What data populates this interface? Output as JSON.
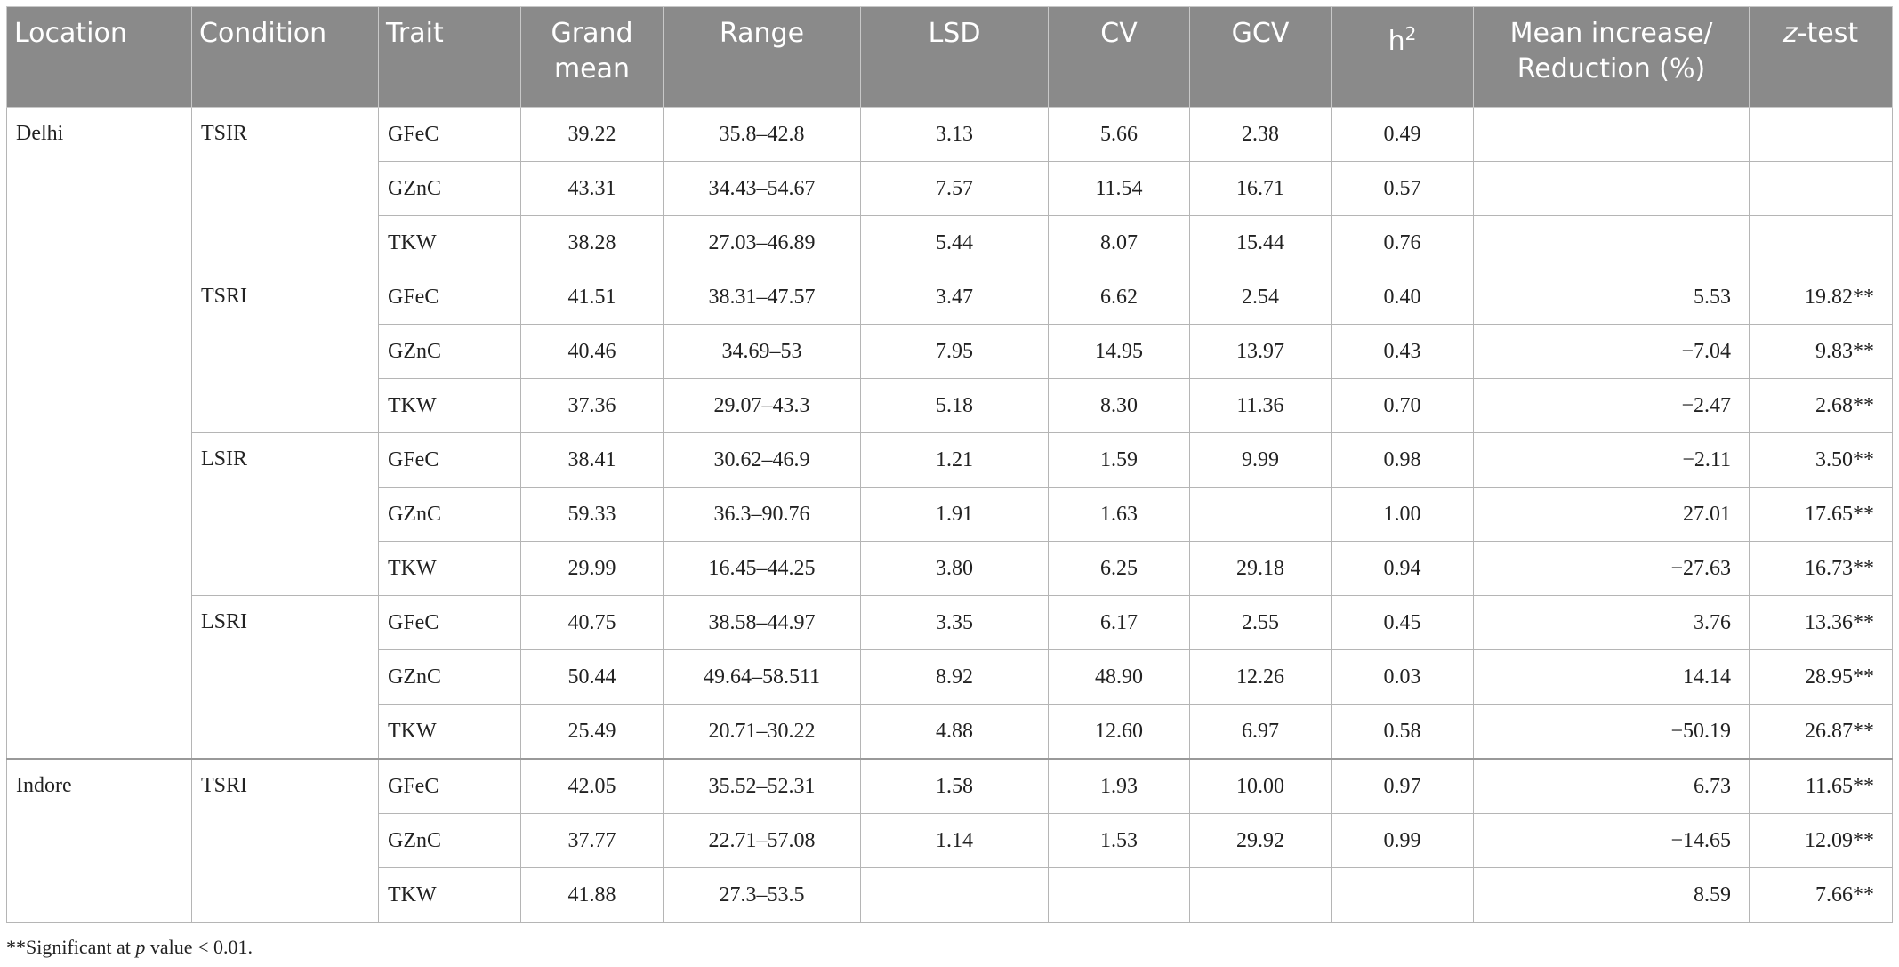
{
  "table": {
    "headers": [
      "Location",
      "Condition",
      "Trait",
      "Grand mean",
      "Range",
      "LSD",
      "CV",
      "GCV",
      {
        "base": "h",
        "sup": "2"
      },
      "Mean increase/ Reduction (%)",
      {
        "italic": "z",
        "rest": "-test"
      }
    ],
    "groups": [
      {
        "location": "Delhi",
        "conditions": [
          {
            "condition": "TSIR",
            "rows": [
              [
                "GFeC",
                "39.22",
                "35.8–42.8",
                "3.13",
                "5.66",
                "2.38",
                "0.49",
                null,
                null
              ],
              [
                "GZnC",
                "43.31",
                "34.43–54.67",
                "7.57",
                "11.54",
                "16.71",
                "0.57",
                null,
                null
              ],
              [
                "TKW",
                "38.28",
                "27.03–46.89",
                "5.44",
                "8.07",
                "15.44",
                "0.76",
                null,
                null
              ]
            ]
          },
          {
            "condition": "TSRI",
            "rows": [
              [
                "GFeC",
                "41.51",
                "38.31–47.57",
                "3.47",
                "6.62",
                "2.54",
                "0.40",
                "5.53",
                "19.82**"
              ],
              [
                "GZnC",
                "40.46",
                "34.69–53",
                "7.95",
                "14.95",
                "13.97",
                "0.43",
                "−7.04",
                "9.83**"
              ],
              [
                "TKW",
                "37.36",
                "29.07–43.3",
                "5.18",
                "8.30",
                "11.36",
                "0.70",
                "−2.47",
                "2.68**"
              ]
            ]
          },
          {
            "condition": "LSIR",
            "rows": [
              [
                "GFeC",
                "38.41",
                "30.62–46.9",
                "1.21",
                "1.59",
                "9.99",
                "0.98",
                "−2.11",
                "3.50**"
              ],
              [
                "GZnC",
                "59.33",
                "36.3–90.76",
                "1.91",
                "1.63",
                null,
                "1.00",
                "27.01",
                "17.65**"
              ],
              [
                "TKW",
                "29.99",
                "16.45–44.25",
                "3.80",
                "6.25",
                "29.18",
                "0.94",
                "−27.63",
                "16.73**"
              ]
            ]
          },
          {
            "condition": "LSRI",
            "rows": [
              [
                "GFeC",
                "40.75",
                "38.58–44.97",
                "3.35",
                "6.17",
                "2.55",
                "0.45",
                "3.76",
                "13.36**"
              ],
              [
                "GZnC",
                "50.44",
                "49.64–58.511",
                "8.92",
                "48.90",
                "12.26",
                "0.03",
                "14.14",
                "28.95**"
              ],
              [
                "TKW",
                "25.49",
                "20.71–30.22",
                "4.88",
                "12.60",
                "6.97",
                "0.58",
                "−50.19",
                "26.87**"
              ]
            ]
          }
        ]
      },
      {
        "location": "Indore",
        "conditions": [
          {
            "condition": "TSRI",
            "rows": [
              [
                "GFeC",
                "42.05",
                "35.52–52.31",
                "1.58",
                "1.93",
                "10.00",
                "0.97",
                "6.73",
                "11.65**"
              ],
              [
                "GZnC",
                "37.77",
                "22.71–57.08",
                "1.14",
                "1.53",
                "29.92",
                "0.99",
                "−14.65",
                "12.09**"
              ],
              [
                "TKW",
                "41.88",
                "27.3–53.5",
                null,
                null,
                null,
                null,
                "8.59",
                "7.66**"
              ]
            ]
          }
        ]
      }
    ],
    "footnote": {
      "prefix": "**Significant at ",
      "italic": "p",
      "suffix": " value < 0.01."
    }
  }
}
